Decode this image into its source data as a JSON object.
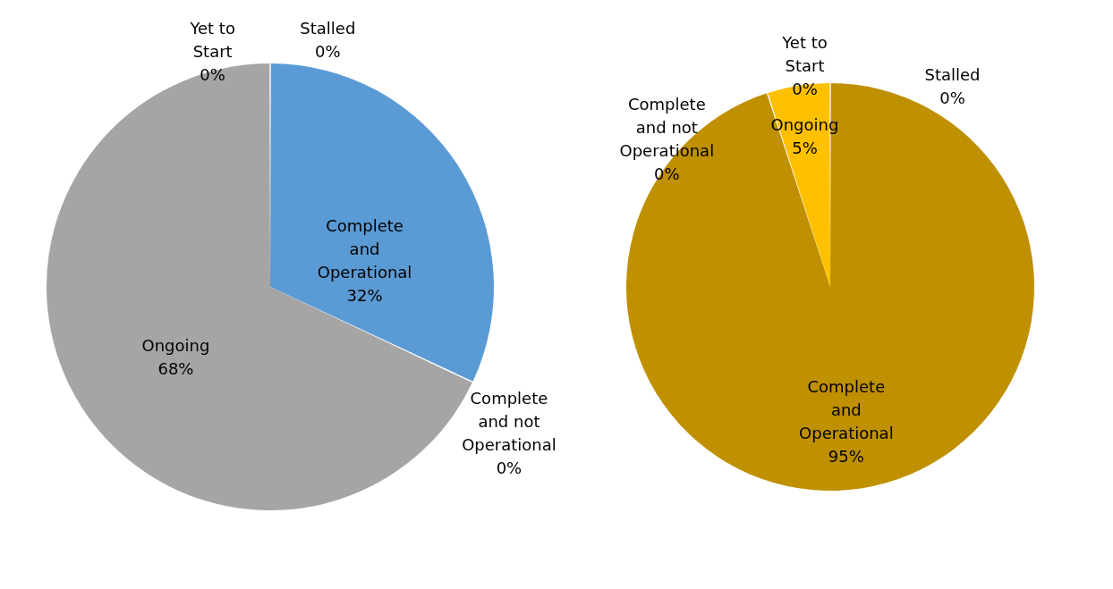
{
  "chart_data": [
    {
      "type": "pie",
      "categories": [
        "Complete and Operational",
        "Complete and not Operational",
        "Ongoing",
        "Yet to Start",
        "Stalled"
      ],
      "values": [
        32,
        0,
        68,
        0,
        0
      ],
      "value_labels": [
        "32%",
        "0%",
        "68%",
        "0%",
        "0%"
      ],
      "colors": [
        "#5b9bd5",
        "#ed7d31",
        "#a5a5a5",
        "#ffc000",
        "#4472c4"
      ]
    },
    {
      "type": "pie",
      "categories": [
        "Complete and Operational",
        "Complete and not Operational",
        "Ongoing",
        "Yet to Start",
        "Stalled"
      ],
      "values": [
        95,
        0,
        5,
        0,
        0
      ],
      "value_labels": [
        "95%",
        "0%",
        "5%",
        "0%",
        "0%"
      ],
      "colors": [
        "#bf9000",
        "#7f6000",
        "#ffc000",
        "#ffd966",
        "#ffe699"
      ]
    }
  ]
}
